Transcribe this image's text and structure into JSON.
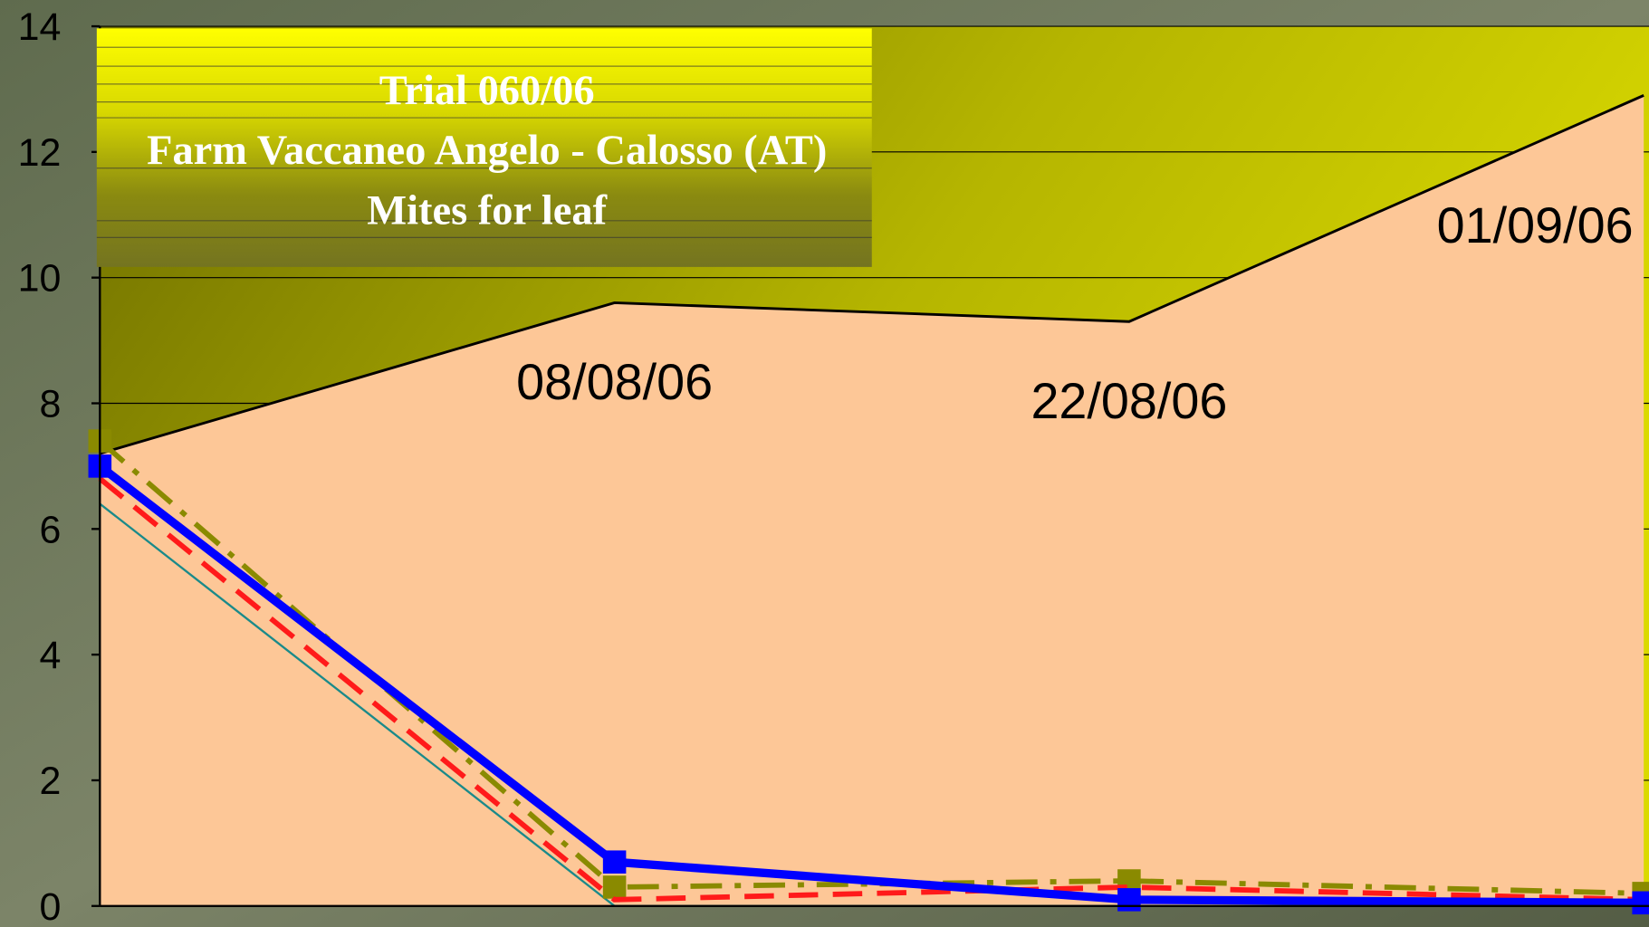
{
  "chart_data": {
    "type": "line",
    "title": [
      "Trial 060/06",
      "Farm Vaccaneo Angelo - Calosso (AT)",
      "Mites for leaf"
    ],
    "categories": [
      null,
      "08/08/06",
      "22/08/06",
      "01/09/06"
    ],
    "ylim": [
      0,
      14
    ],
    "yticks": [
      0,
      2,
      4,
      6,
      8,
      10,
      12,
      14
    ],
    "grid": true,
    "series": [
      {
        "kind": "area",
        "color": "#fdc797",
        "values": [
          7.2,
          9.6,
          9.3,
          12.9
        ]
      },
      {
        "kind": "line",
        "color": "#1a8a8a",
        "width": 2,
        "dash": "solid",
        "marker": false,
        "values": [
          6.4,
          0,
          0,
          0
        ]
      },
      {
        "kind": "line",
        "color": "#8a8a00",
        "width": 5,
        "dash": "dashdot",
        "marker": true,
        "values": [
          7.4,
          0.3,
          0.4,
          0.2
        ]
      },
      {
        "kind": "line",
        "color": "#ff1a1a",
        "width": 5,
        "dash": "dash",
        "marker": false,
        "values": [
          6.8,
          0.1,
          0.3,
          0.1
        ]
      },
      {
        "kind": "line",
        "color": "#0000ff",
        "width": 8,
        "dash": "solid",
        "marker": true,
        "values": [
          7.0,
          0.7,
          0.1,
          0.05
        ]
      }
    ]
  }
}
